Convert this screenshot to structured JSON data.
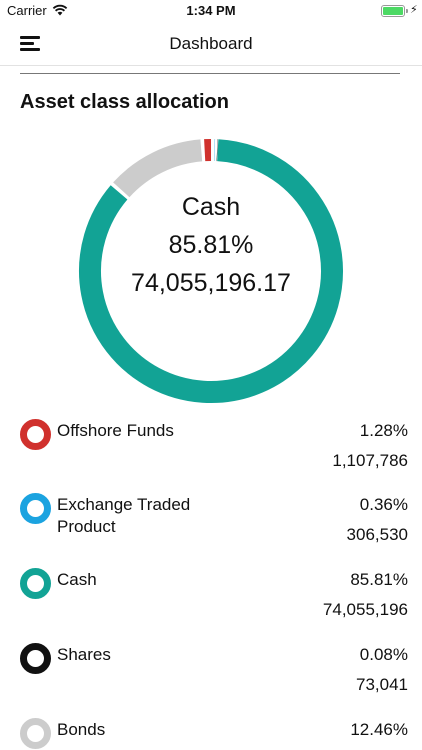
{
  "status_bar": {
    "carrier": "Carrier",
    "time": "1:34 PM",
    "battery_color": "#4cd964"
  },
  "nav": {
    "title": "Dashboard",
    "menu_icon": "hamburger-menu-icon"
  },
  "section": {
    "title": "Asset class allocation"
  },
  "donut": {
    "selected": {
      "name": "Cash",
      "percent": "85.81%",
      "value": "74,055,196.17"
    }
  },
  "legend": {
    "items": [
      {
        "label": "Offshore Funds",
        "percent": "1.28%",
        "amount": "1,107,786",
        "color": "#d0312d"
      },
      {
        "label": "Exchange Traded Product",
        "percent": "0.36%",
        "amount": "306,530",
        "color": "#1ba3e0"
      },
      {
        "label": "Cash",
        "percent": "85.81%",
        "amount": "74,055,196",
        "color": "#12a395"
      },
      {
        "label": "Shares",
        "percent": "0.08%",
        "amount": "73,041",
        "color": "#111111"
      },
      {
        "label": "Bonds",
        "percent": "12.46%",
        "amount": "",
        "color": "#cccccc"
      }
    ]
  },
  "chart_data": {
    "type": "pie",
    "categories": [
      "Offshore Funds",
      "Exchange Traded Product",
      "Cash",
      "Shares",
      "Bonds"
    ],
    "values": [
      1.28,
      0.36,
      85.81,
      0.08,
      12.46
    ],
    "colors": [
      "#d0312d",
      "#1ba3e0",
      "#12a395",
      "#111111",
      "#cccccc"
    ],
    "title": "Asset class allocation"
  }
}
